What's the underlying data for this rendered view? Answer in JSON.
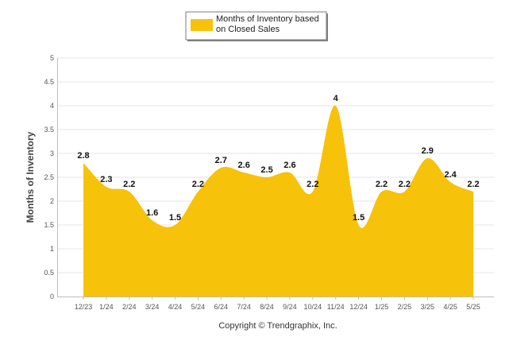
{
  "chart_data": {
    "type": "area",
    "title": "",
    "xlabel": "",
    "ylabel": "Months of Inventory",
    "categories": [
      "12/23",
      "1/24",
      "2/24",
      "3/24",
      "4/24",
      "5/24",
      "6/24",
      "7/24",
      "8/24",
      "9/24",
      "10/24",
      "11/24",
      "12/24",
      "1/25",
      "2/25",
      "3/25",
      "4/25",
      "5/25"
    ],
    "series": [
      {
        "name": "Months of Inventory based on Closed Sales",
        "values": [
          2.8,
          2.3,
          2.2,
          1.6,
          1.5,
          2.2,
          2.7,
          2.6,
          2.5,
          2.6,
          2.2,
          4,
          1.5,
          2.2,
          2.2,
          2.9,
          2.4,
          2.2
        ],
        "color": "#F7C20A"
      }
    ],
    "ylim": [
      0,
      5
    ],
    "yticks": [
      "0",
      "0.5",
      "1",
      "1.5",
      "2",
      "2.5",
      "3",
      "3.5",
      "4",
      "4.5",
      "5"
    ],
    "grid": true,
    "legend": {
      "position": "top-center",
      "text": "Months of Inventory based on Closed Sales",
      "lines": [
        "Months of Inventory based",
        "on Closed Sales"
      ]
    },
    "copyright": "Copyright © Trendgraphix, Inc."
  }
}
